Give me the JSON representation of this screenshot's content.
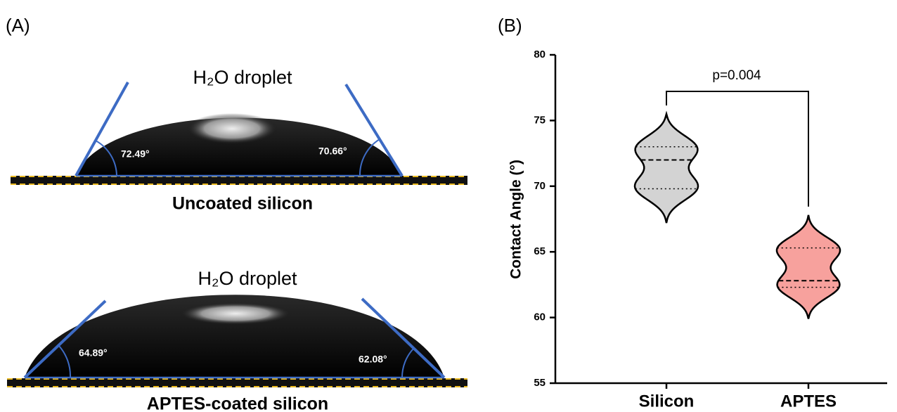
{
  "panel_a": {
    "label": "(A)",
    "images": [
      {
        "droplet_label": "H₂O droplet",
        "left_angle": "72.49°",
        "right_angle": "70.66°",
        "caption": "Uncoated silicon"
      },
      {
        "droplet_label": "H₂O droplet",
        "left_angle": "64.89°",
        "right_angle": "62.08°",
        "caption": "APTES-coated silicon"
      }
    ]
  },
  "chart_data": {
    "type": "violin",
    "panel_label": "(B)",
    "y_label": "Contact Angle (°)",
    "categories": [
      "Silicon",
      "APTES"
    ],
    "values": [
      {
        "min": 67.2,
        "q1": 69.8,
        "median": 72,
        "q3": 73,
        "max": 75.5
      },
      {
        "min": 59.9,
        "q1": 62.3,
        "median": 62.8,
        "q3": 65.3,
        "max": 67.8
      }
    ],
    "colors": [
      "#d3d3d3",
      "#f7a19d"
    ],
    "ylim": [
      55,
      80
    ],
    "yticks": [
      55,
      60,
      65,
      70,
      75,
      80
    ],
    "annotation": "p=0.004"
  }
}
